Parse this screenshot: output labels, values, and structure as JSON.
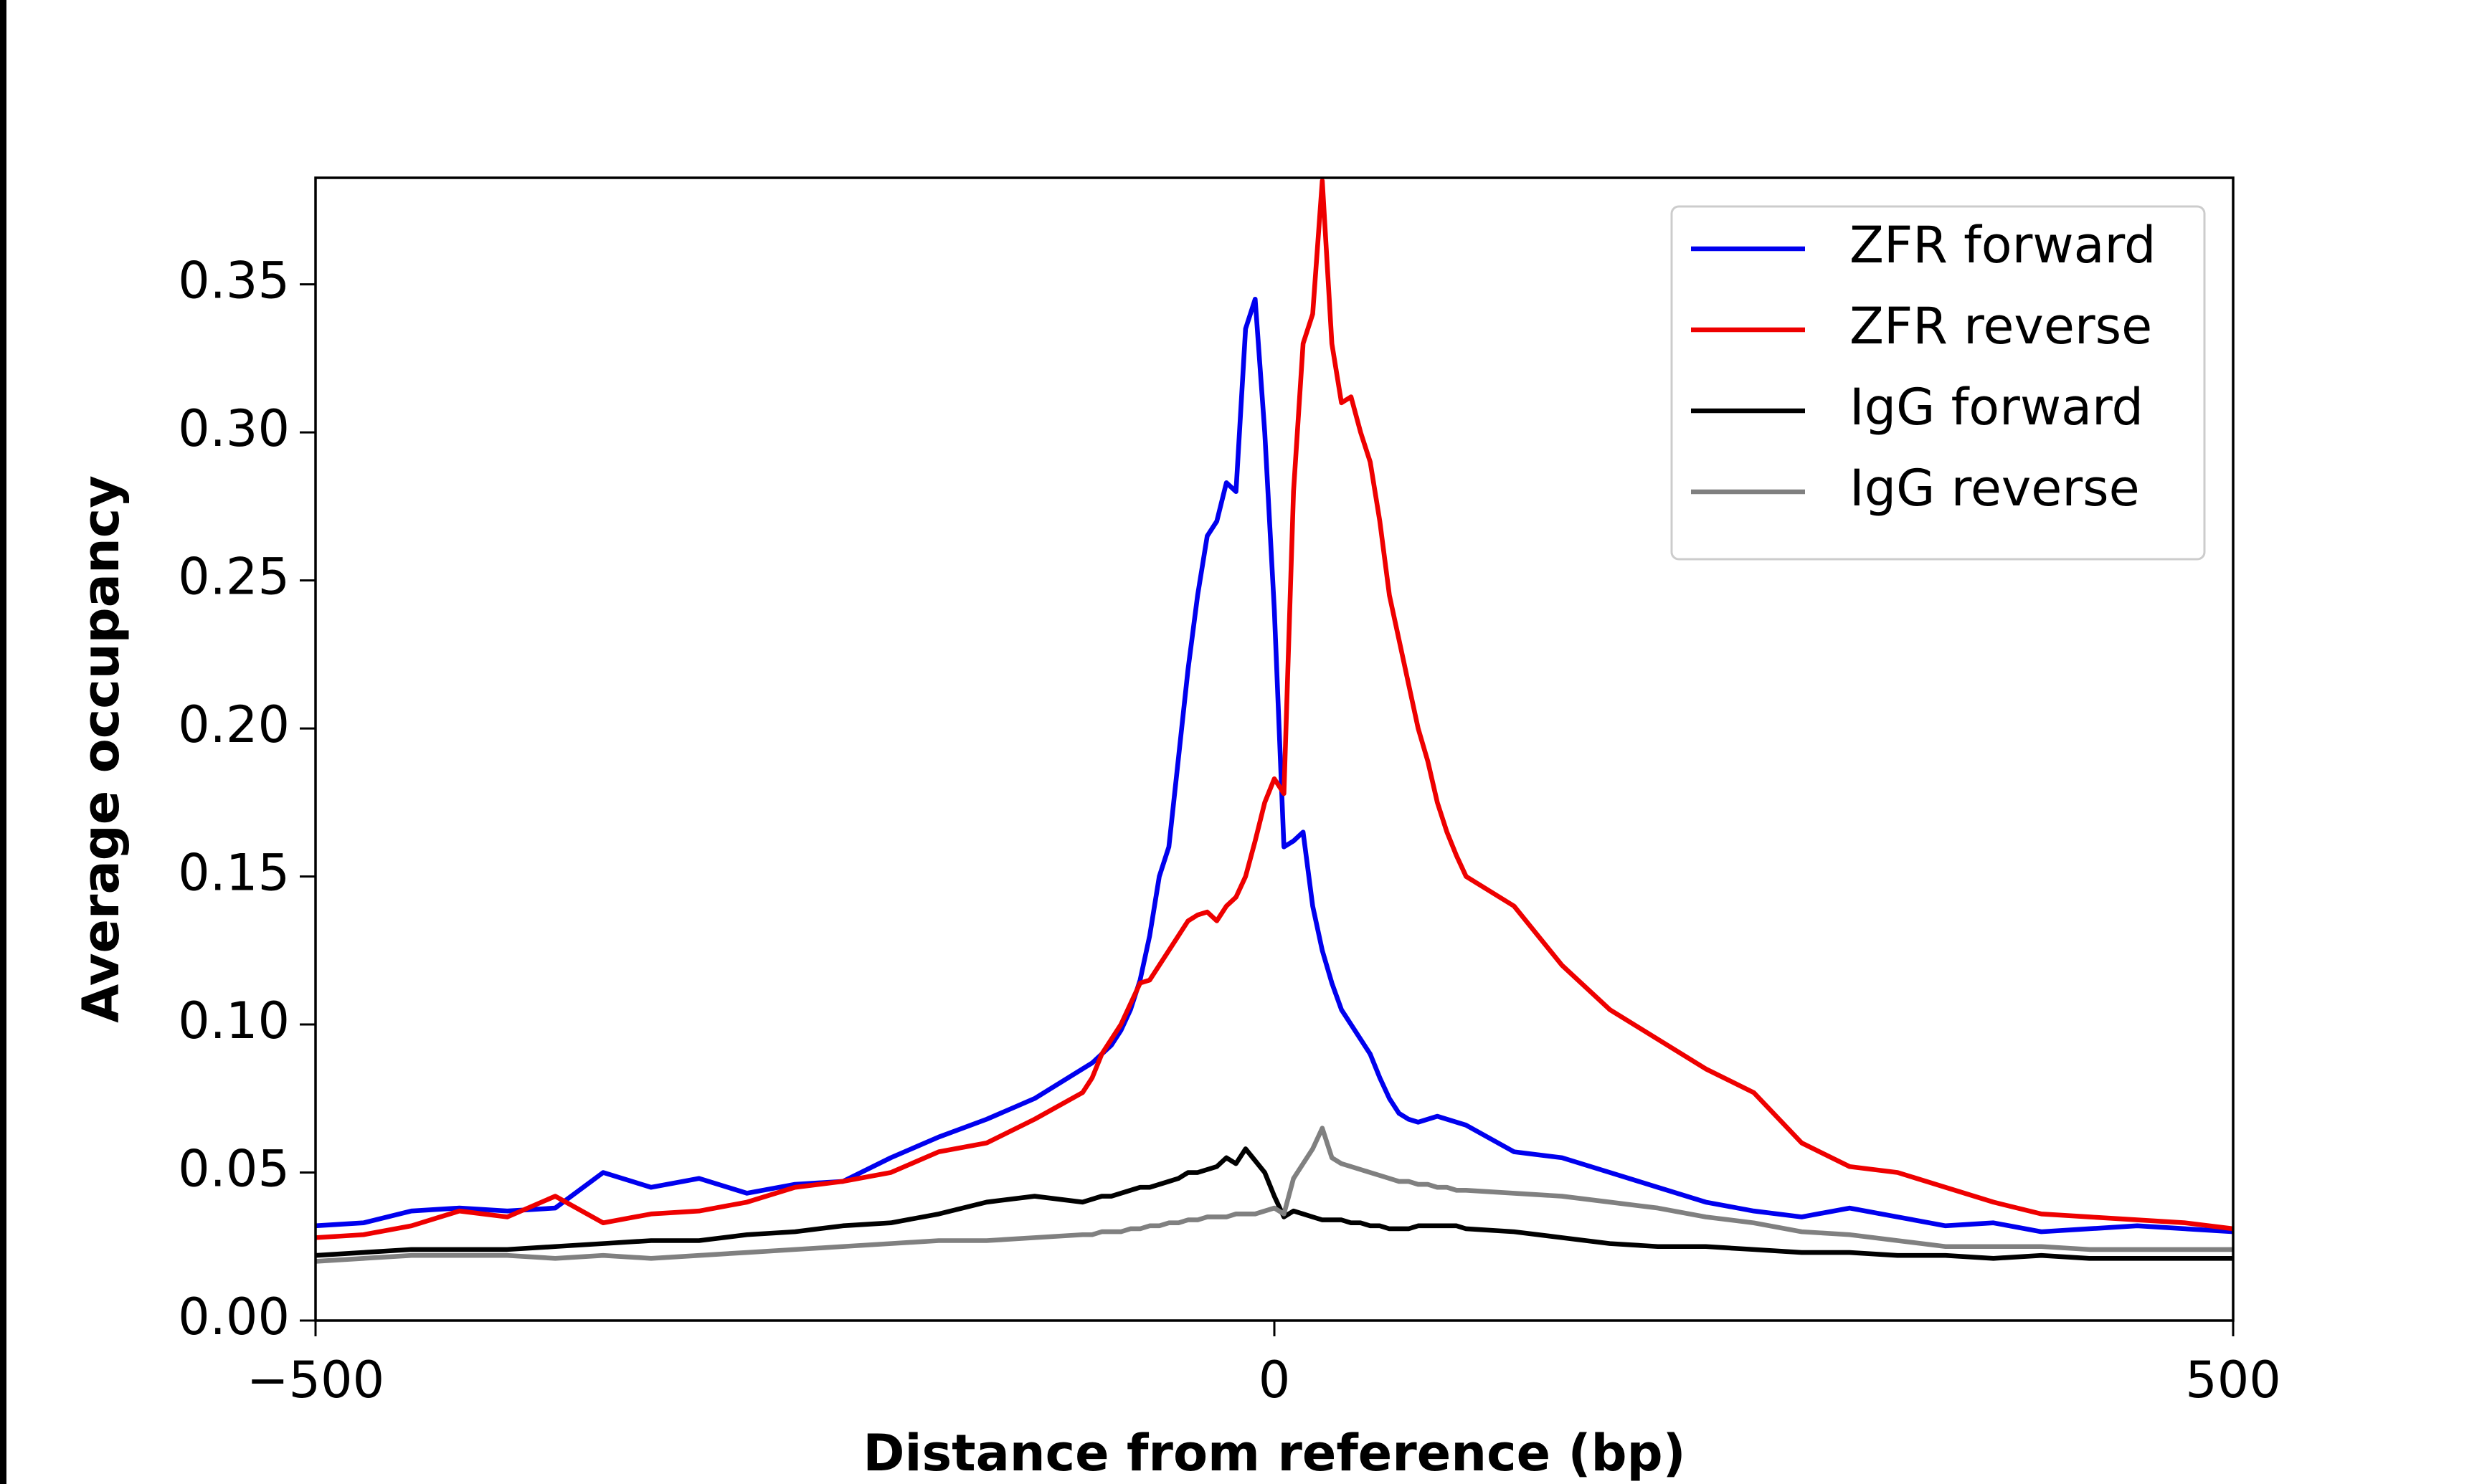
{
  "chart_data": {
    "type": "line",
    "xlabel": "Distance from reference (bp)",
    "ylabel": "Average occupancy",
    "x": [
      -500,
      -475,
      -450,
      -425,
      -400,
      -375,
      -350,
      -325,
      -300,
      -275,
      -250,
      -225,
      -200,
      -175,
      -150,
      -125,
      -100,
      -95,
      -90,
      -85,
      -80,
      -75,
      -70,
      -65,
      -60,
      -55,
      -50,
      -45,
      -40,
      -35,
      -30,
      -25,
      -20,
      -15,
      -10,
      -5,
      0,
      5,
      10,
      15,
      20,
      25,
      30,
      35,
      40,
      45,
      50,
      55,
      60,
      65,
      70,
      75,
      80,
      85,
      90,
      95,
      100,
      125,
      150,
      175,
      200,
      225,
      250,
      275,
      300,
      325,
      350,
      375,
      400,
      425,
      450,
      475,
      500
    ],
    "series": [
      {
        "name": "ZFR forward",
        "color": "#0000ee",
        "values": [
          0.032,
          0.033,
          0.037,
          0.038,
          0.037,
          0.038,
          0.05,
          0.045,
          0.048,
          0.043,
          0.046,
          0.047,
          0.055,
          0.062,
          0.068,
          0.075,
          0.085,
          0.087,
          0.09,
          0.093,
          0.098,
          0.105,
          0.115,
          0.13,
          0.15,
          0.16,
          0.19,
          0.22,
          0.245,
          0.265,
          0.27,
          0.283,
          0.28,
          0.335,
          0.345,
          0.3,
          0.24,
          0.16,
          0.162,
          0.165,
          0.14,
          0.125,
          0.114,
          0.105,
          0.1,
          0.095,
          0.09,
          0.082,
          0.075,
          0.07,
          0.068,
          0.067,
          0.068,
          0.069,
          0.068,
          0.067,
          0.066,
          0.057,
          0.055,
          0.05,
          0.045,
          0.04,
          0.037,
          0.035,
          0.038,
          0.035,
          0.032,
          0.033,
          0.03,
          0.031,
          0.032,
          0.031,
          0.03
        ]
      },
      {
        "name": "ZFR reverse",
        "color": "#ee0000",
        "values": [
          0.028,
          0.029,
          0.032,
          0.037,
          0.035,
          0.042,
          0.033,
          0.036,
          0.037,
          0.04,
          0.045,
          0.047,
          0.05,
          0.057,
          0.06,
          0.068,
          0.077,
          0.082,
          0.09,
          0.095,
          0.1,
          0.107,
          0.114,
          0.115,
          0.12,
          0.125,
          0.13,
          0.135,
          0.137,
          0.138,
          0.135,
          0.14,
          0.143,
          0.15,
          0.162,
          0.175,
          0.183,
          0.178,
          0.28,
          0.33,
          0.34,
          0.385,
          0.33,
          0.31,
          0.312,
          0.3,
          0.29,
          0.27,
          0.245,
          0.23,
          0.215,
          0.2,
          0.189,
          0.175,
          0.165,
          0.157,
          0.15,
          0.14,
          0.12,
          0.105,
          0.095,
          0.085,
          0.077,
          0.06,
          0.052,
          0.05,
          0.045,
          0.04,
          0.036,
          0.035,
          0.034,
          0.033,
          0.031
        ]
      },
      {
        "name": "IgG forward",
        "color": "#000000",
        "values": [
          0.022,
          0.023,
          0.024,
          0.024,
          0.024,
          0.025,
          0.026,
          0.027,
          0.027,
          0.029,
          0.03,
          0.032,
          0.033,
          0.036,
          0.04,
          0.042,
          0.04,
          0.041,
          0.042,
          0.042,
          0.043,
          0.044,
          0.045,
          0.045,
          0.046,
          0.047,
          0.048,
          0.05,
          0.05,
          0.051,
          0.052,
          0.055,
          0.053,
          0.058,
          0.054,
          0.05,
          0.042,
          0.035,
          0.037,
          0.036,
          0.035,
          0.034,
          0.034,
          0.034,
          0.033,
          0.033,
          0.032,
          0.032,
          0.031,
          0.031,
          0.031,
          0.032,
          0.032,
          0.032,
          0.032,
          0.032,
          0.031,
          0.03,
          0.028,
          0.026,
          0.025,
          0.025,
          0.024,
          0.023,
          0.023,
          0.022,
          0.022,
          0.021,
          0.022,
          0.021,
          0.021,
          0.021,
          0.021
        ]
      },
      {
        "name": "IgG reverse",
        "color": "#808080",
        "values": [
          0.02,
          0.021,
          0.022,
          0.022,
          0.022,
          0.021,
          0.022,
          0.021,
          0.022,
          0.023,
          0.024,
          0.025,
          0.026,
          0.027,
          0.027,
          0.028,
          0.029,
          0.029,
          0.03,
          0.03,
          0.03,
          0.031,
          0.031,
          0.032,
          0.032,
          0.033,
          0.033,
          0.034,
          0.034,
          0.035,
          0.035,
          0.035,
          0.036,
          0.036,
          0.036,
          0.037,
          0.038,
          0.036,
          0.048,
          0.053,
          0.058,
          0.065,
          0.055,
          0.053,
          0.052,
          0.051,
          0.05,
          0.049,
          0.048,
          0.047,
          0.047,
          0.046,
          0.046,
          0.045,
          0.045,
          0.044,
          0.044,
          0.043,
          0.042,
          0.04,
          0.038,
          0.035,
          0.033,
          0.03,
          0.029,
          0.027,
          0.025,
          0.025,
          0.025,
          0.024,
          0.024,
          0.024,
          0.024
        ]
      }
    ],
    "xlim": [
      -500,
      500
    ],
    "ylim": [
      0,
      0.386
    ],
    "xticks": [
      {
        "value": -500,
        "label": "−500"
      },
      0,
      500
    ],
    "yticks": [
      {
        "value": 0,
        "label": "0.00"
      },
      {
        "value": 0.05,
        "label": "0.05"
      },
      {
        "value": 0.1,
        "label": "0.10"
      },
      {
        "value": 0.15,
        "label": "0.15"
      },
      {
        "value": 0.2,
        "label": "0.20"
      },
      {
        "value": 0.25,
        "label": "0.25"
      },
      {
        "value": 0.3,
        "label": "0.30"
      },
      {
        "value": 0.35,
        "label": "0.35"
      }
    ],
    "legend": "upper right",
    "grid": false
  }
}
